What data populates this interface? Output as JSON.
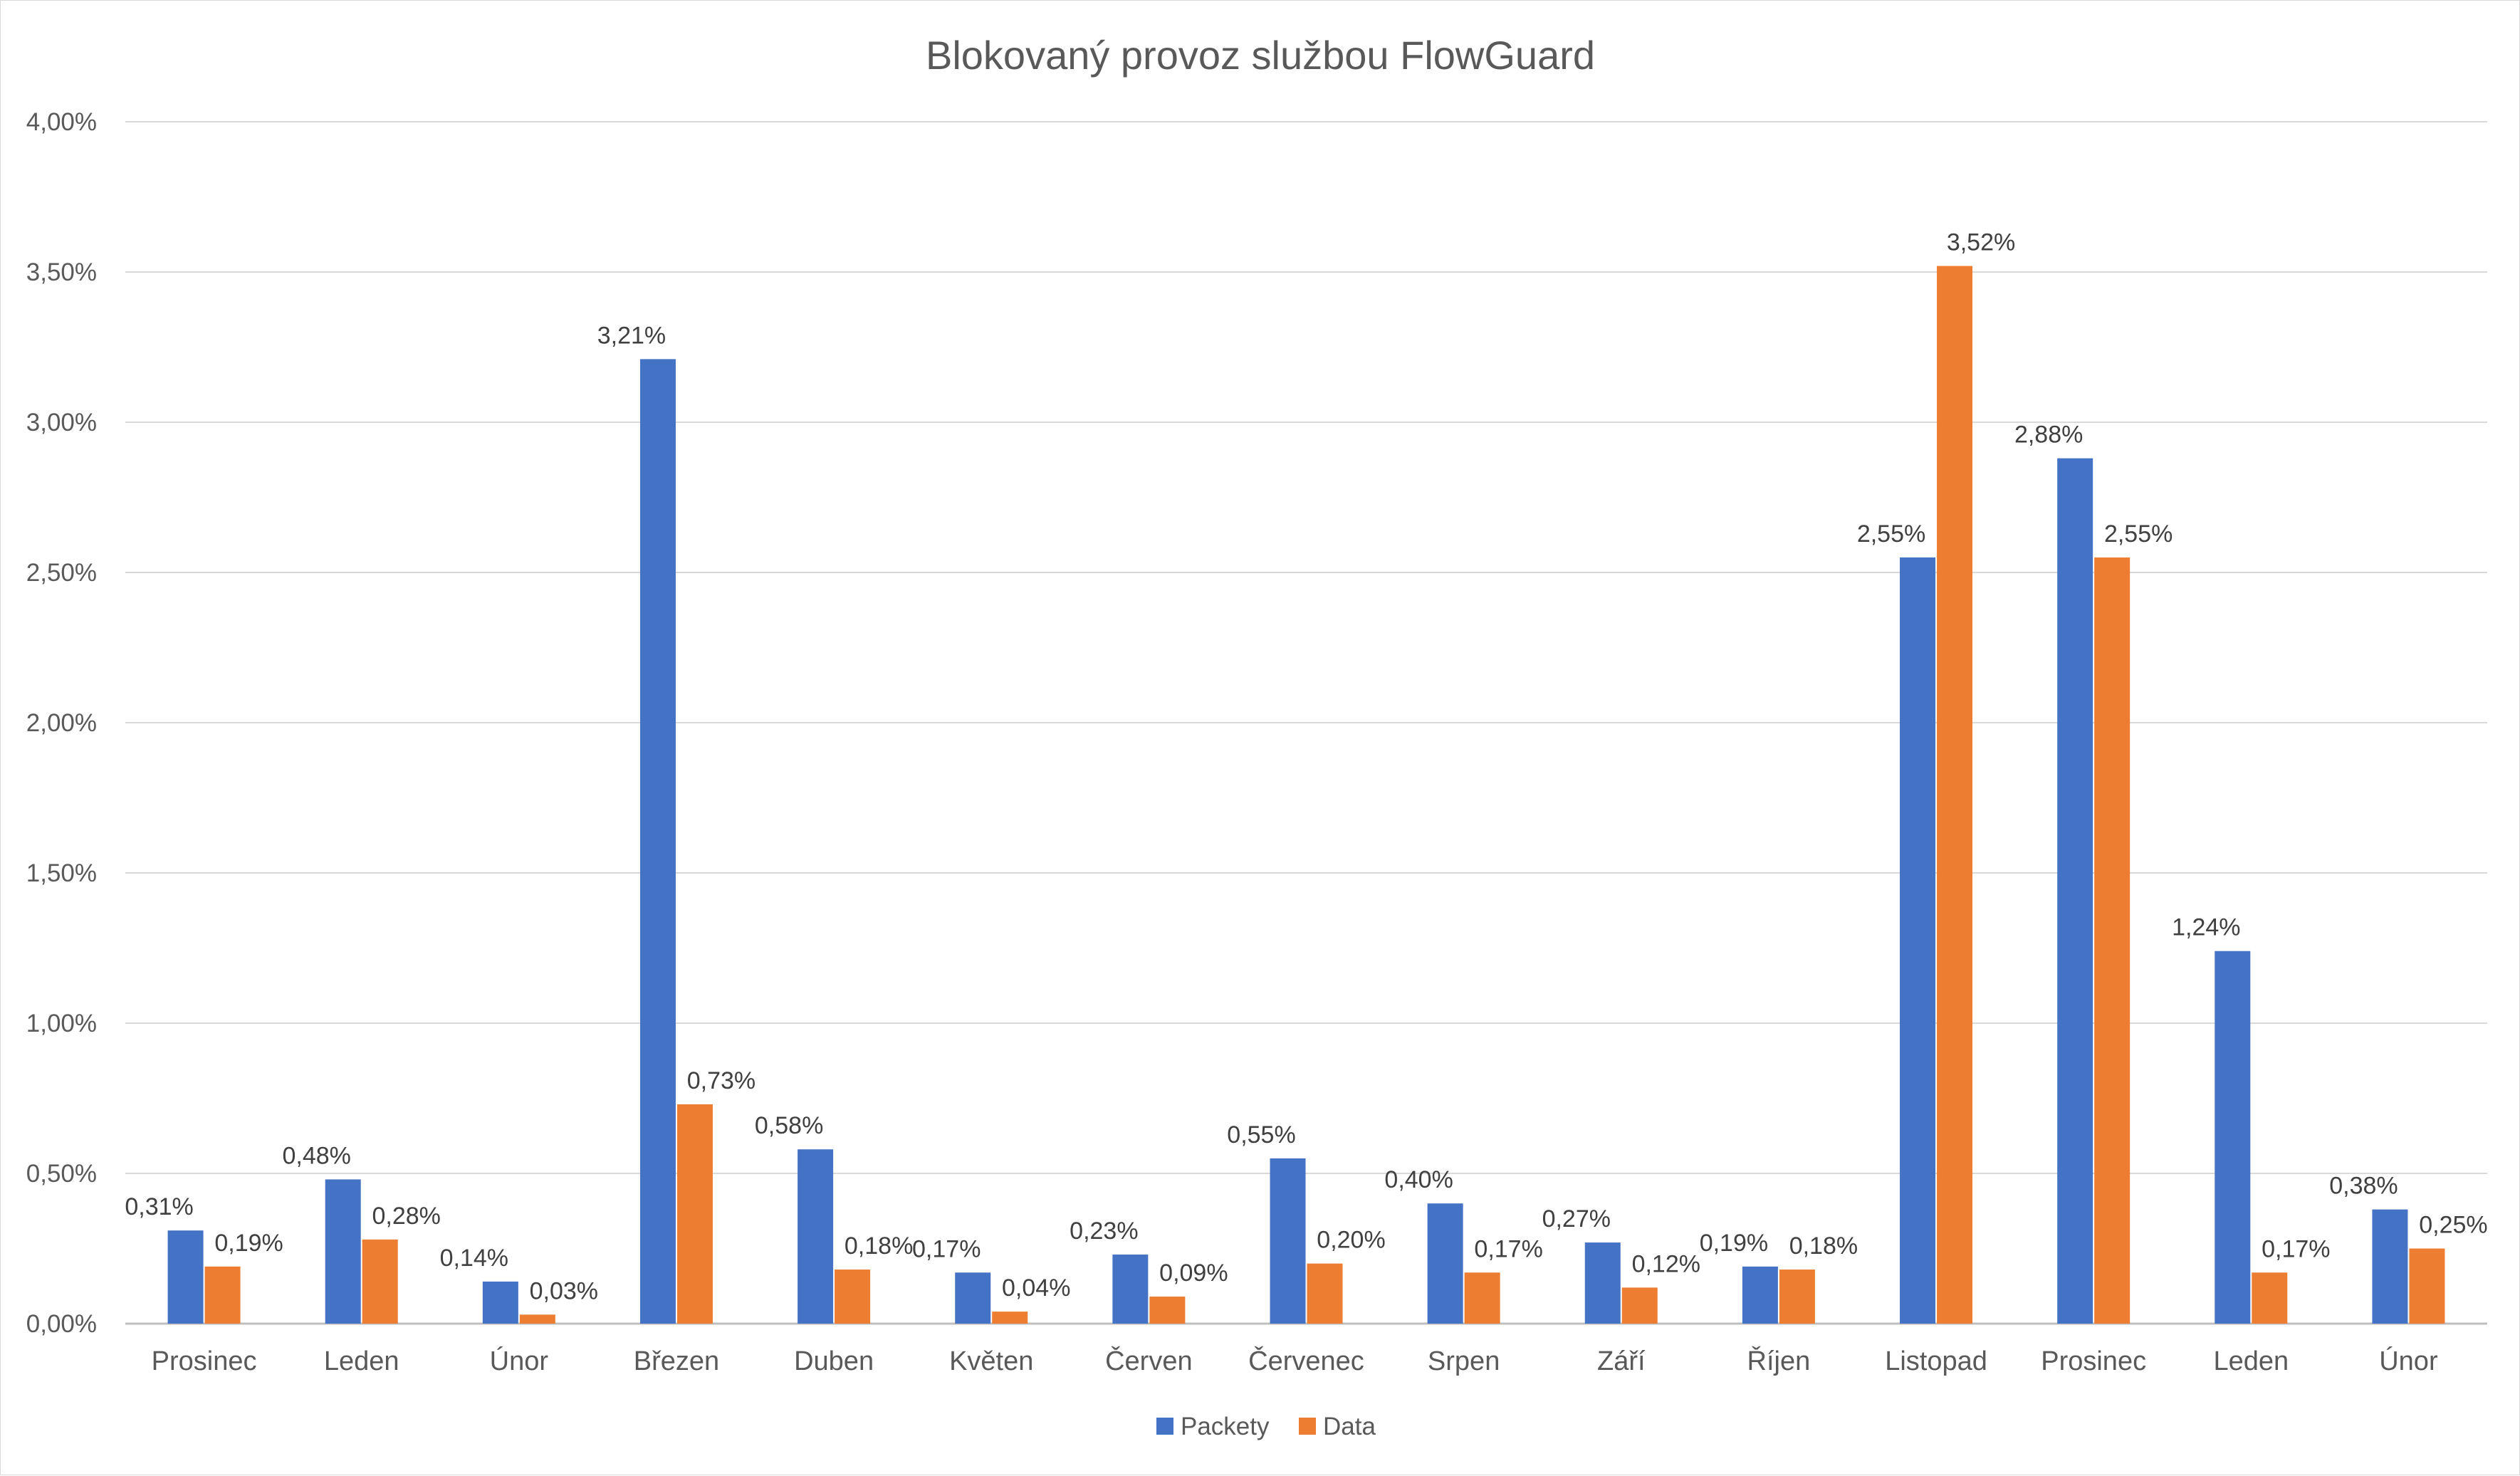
{
  "chart_data": {
    "type": "bar",
    "title": "Blokovaný provoz službou FlowGuard",
    "xlabel": "",
    "ylabel": "",
    "ylim": [
      0,
      4
    ],
    "y_ticks": [
      "0,00%",
      "0,50%",
      "1,00%",
      "1,50%",
      "2,00%",
      "2,50%",
      "3,00%",
      "3,50%",
      "4,00%"
    ],
    "grid": true,
    "legend_position": "bottom",
    "categories": [
      "Prosinec",
      "Leden",
      "Únor",
      "Březen",
      "Duben",
      "Květen",
      "Červen",
      "Červenec",
      "Srpen",
      "Září",
      "Říjen",
      "Listopad",
      "Prosinec",
      "Leden",
      "Únor"
    ],
    "series": [
      {
        "name": "Packety",
        "color": "#4472c4",
        "values": [
          0.31,
          0.48,
          0.14,
          3.21,
          0.58,
          0.17,
          0.23,
          0.55,
          0.4,
          0.27,
          0.19,
          2.55,
          2.88,
          1.24,
          0.38
        ],
        "labels": [
          "0,31%",
          "0,48%",
          "0,14%",
          "3,21%",
          "0,58%",
          "0,17%",
          "0,23%",
          "0,55%",
          "0,40%",
          "0,27%",
          "0,19%",
          "2,55%",
          "2,88%",
          "1,24%",
          "0,38%"
        ]
      },
      {
        "name": "Data",
        "color": "#ed7d31",
        "values": [
          0.19,
          0.28,
          0.03,
          0.73,
          0.18,
          0.04,
          0.09,
          0.2,
          0.17,
          0.12,
          0.18,
          3.52,
          2.55,
          0.17,
          0.25
        ],
        "labels": [
          "0,19%",
          "0,28%",
          "0,03%",
          "0,73%",
          "0,18%",
          "0,04%",
          "0,09%",
          "0,20%",
          "0,17%",
          "0,12%",
          "0,18%",
          "3,52%",
          "2,55%",
          "0,17%",
          "0,25%"
        ]
      }
    ]
  }
}
